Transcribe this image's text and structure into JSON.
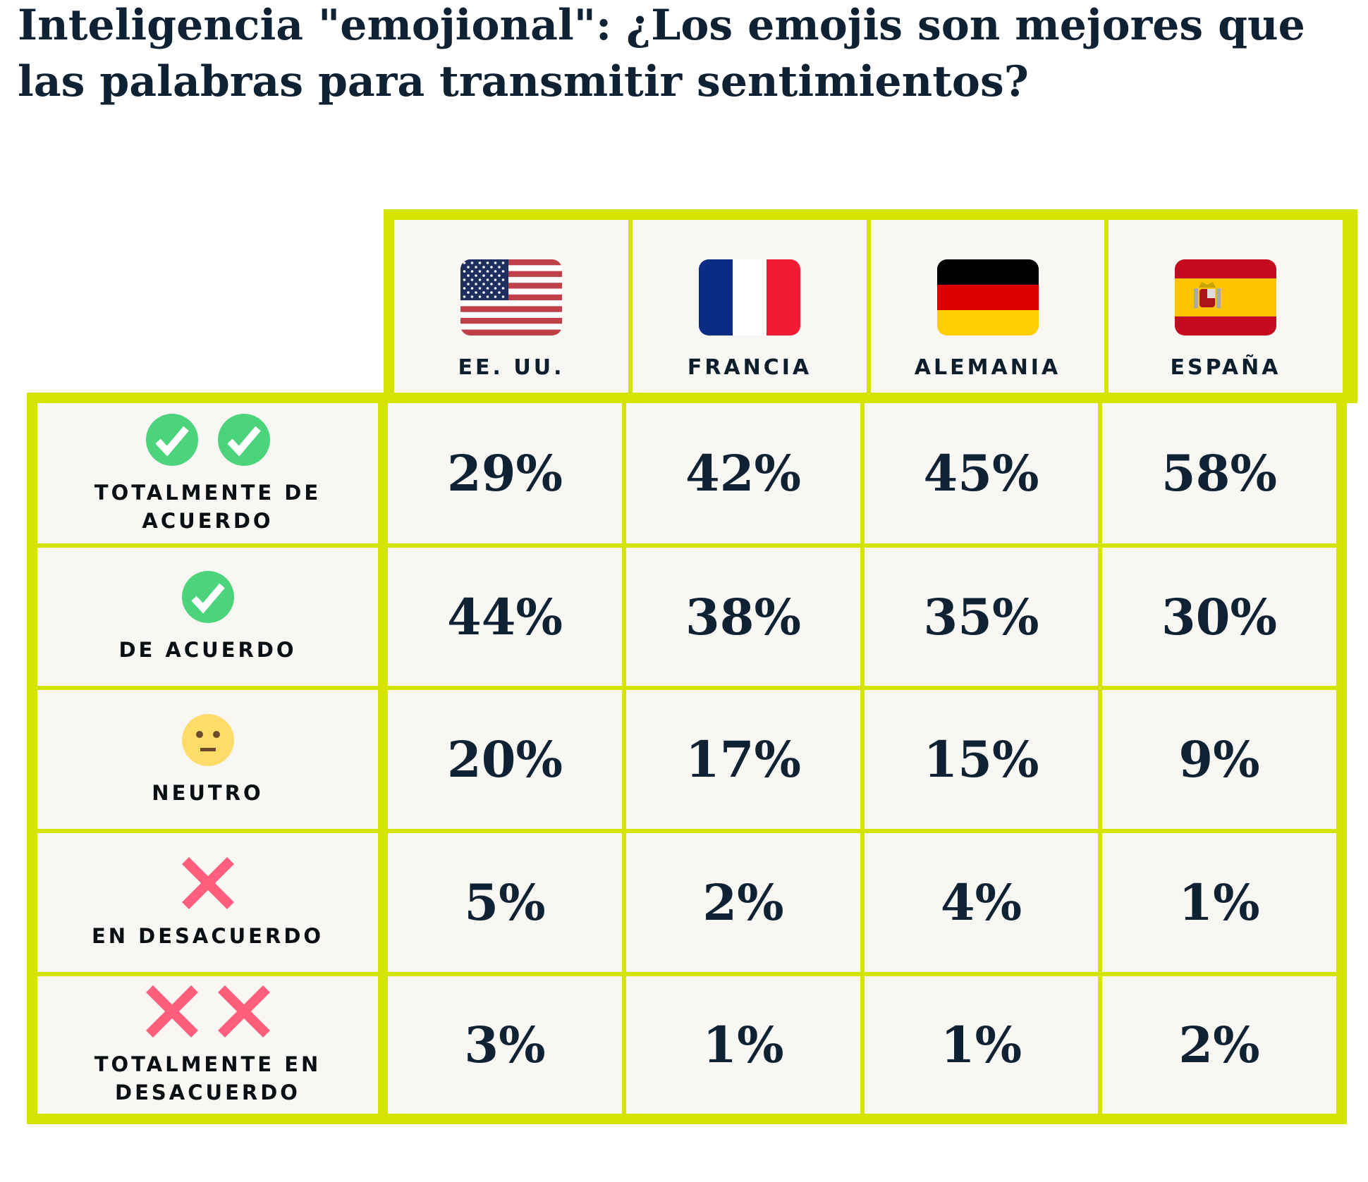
{
  "title": "Inteligencia \"emojional\": ¿Los emojis son mejores que las palabras para transmitir sentimientos?",
  "colors": {
    "border": "#d4e400",
    "cell": "#f8f7f3",
    "text": "#0f2233",
    "check": "#4cd47d",
    "cross": "#ff5f7c",
    "neutral": "#ffdc6a"
  },
  "columns": [
    {
      "label": "EE. UU.",
      "icon": "us-flag-icon"
    },
    {
      "label": "FRANCIA",
      "icon": "france-flag-icon"
    },
    {
      "label": "ALEMANIA",
      "icon": "germany-flag-icon"
    },
    {
      "label": "ESPAÑA",
      "icon": "spain-flag-icon"
    }
  ],
  "rows": [
    {
      "label": "TOTALMENTE DE ACUERDO",
      "icon": "double-check-icon",
      "values": [
        "29%",
        "42%",
        "45%",
        "58%"
      ]
    },
    {
      "label": "DE ACUERDO",
      "icon": "check-icon",
      "values": [
        "44%",
        "38%",
        "35%",
        "30%"
      ]
    },
    {
      "label": "NEUTRO",
      "icon": "neutral-face-icon",
      "values": [
        "20%",
        "17%",
        "15%",
        "9%"
      ]
    },
    {
      "label": "EN DESACUERDO",
      "icon": "cross-icon",
      "values": [
        "5%",
        "2%",
        "4%",
        "1%"
      ]
    },
    {
      "label": "TOTALMENTE EN DESACUERDO",
      "icon": "double-cross-icon",
      "values": [
        "3%",
        "1%",
        "1%",
        "2%"
      ]
    }
  ],
  "chart_data": {
    "type": "table",
    "title": "Inteligencia \"emojional\": ¿Los emojis son mejores que las palabras para transmitir sentimientos?",
    "columns": [
      "EE. UU.",
      "FRANCIA",
      "ALEMANIA",
      "ESPAÑA"
    ],
    "rows": [
      "TOTALMENTE DE ACUERDO",
      "DE ACUERDO",
      "NEUTRO",
      "EN DESACUERDO",
      "TOTALMENTE EN DESACUERDO"
    ],
    "values": [
      [
        29,
        42,
        45,
        58
      ],
      [
        44,
        38,
        35,
        30
      ],
      [
        20,
        17,
        15,
        9
      ],
      [
        5,
        2,
        4,
        1
      ],
      [
        3,
        1,
        1,
        2
      ]
    ],
    "unit": "%"
  }
}
